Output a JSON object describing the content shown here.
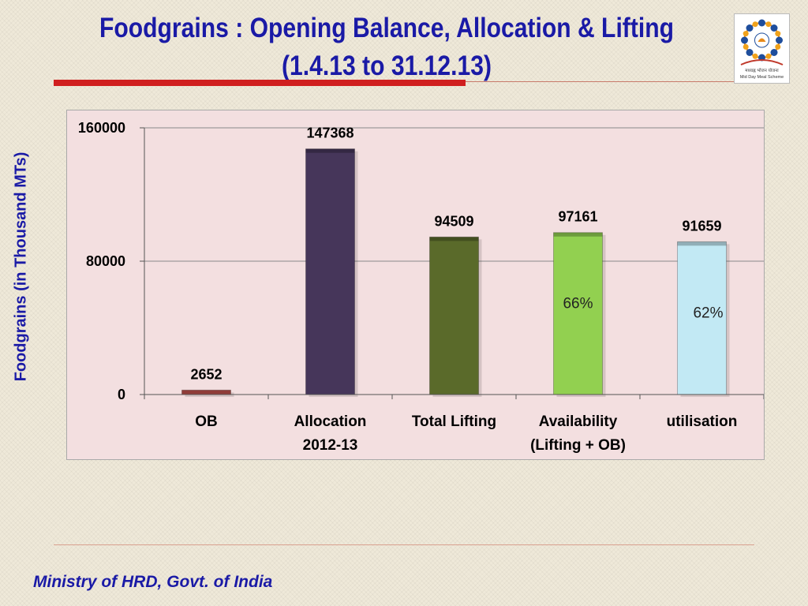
{
  "slide": {
    "title_line1": "Foodgrains : Opening Balance, Allocation & Lifting",
    "title_line2": "(1.4.13 to 31.12.13)",
    "logo_caption": "मध्याह्न भोजन योजना",
    "logo_subcaption": "Mid Day Meal Scheme",
    "footer": "Ministry of HRD, Govt. of India"
  },
  "chart_data": {
    "type": "bar",
    "ylabel": "Foodgrains (in Thousand MTs)",
    "ylim": [
      0,
      160000
    ],
    "yticks": [
      "0",
      "80000",
      "160000"
    ],
    "grid": true,
    "categories": [
      [
        "OB"
      ],
      [
        "Allocation",
        "2012-13"
      ],
      [
        "Total Lifting"
      ],
      [
        "Availability",
        "(Lifting + OB)"
      ],
      [
        "utilisation"
      ]
    ],
    "values": [
      2652,
      147368,
      94509,
      97161,
      91659
    ],
    "value_labels": [
      "2652",
      "147368",
      "94509",
      "97161",
      "91659"
    ],
    "bar_colors": [
      "#c0504d",
      "#46365a",
      "#5a6a2a",
      "#92d050",
      "#c2e9f4"
    ],
    "inner_labels": [
      "",
      "",
      "",
      "66%",
      "62%"
    ]
  }
}
